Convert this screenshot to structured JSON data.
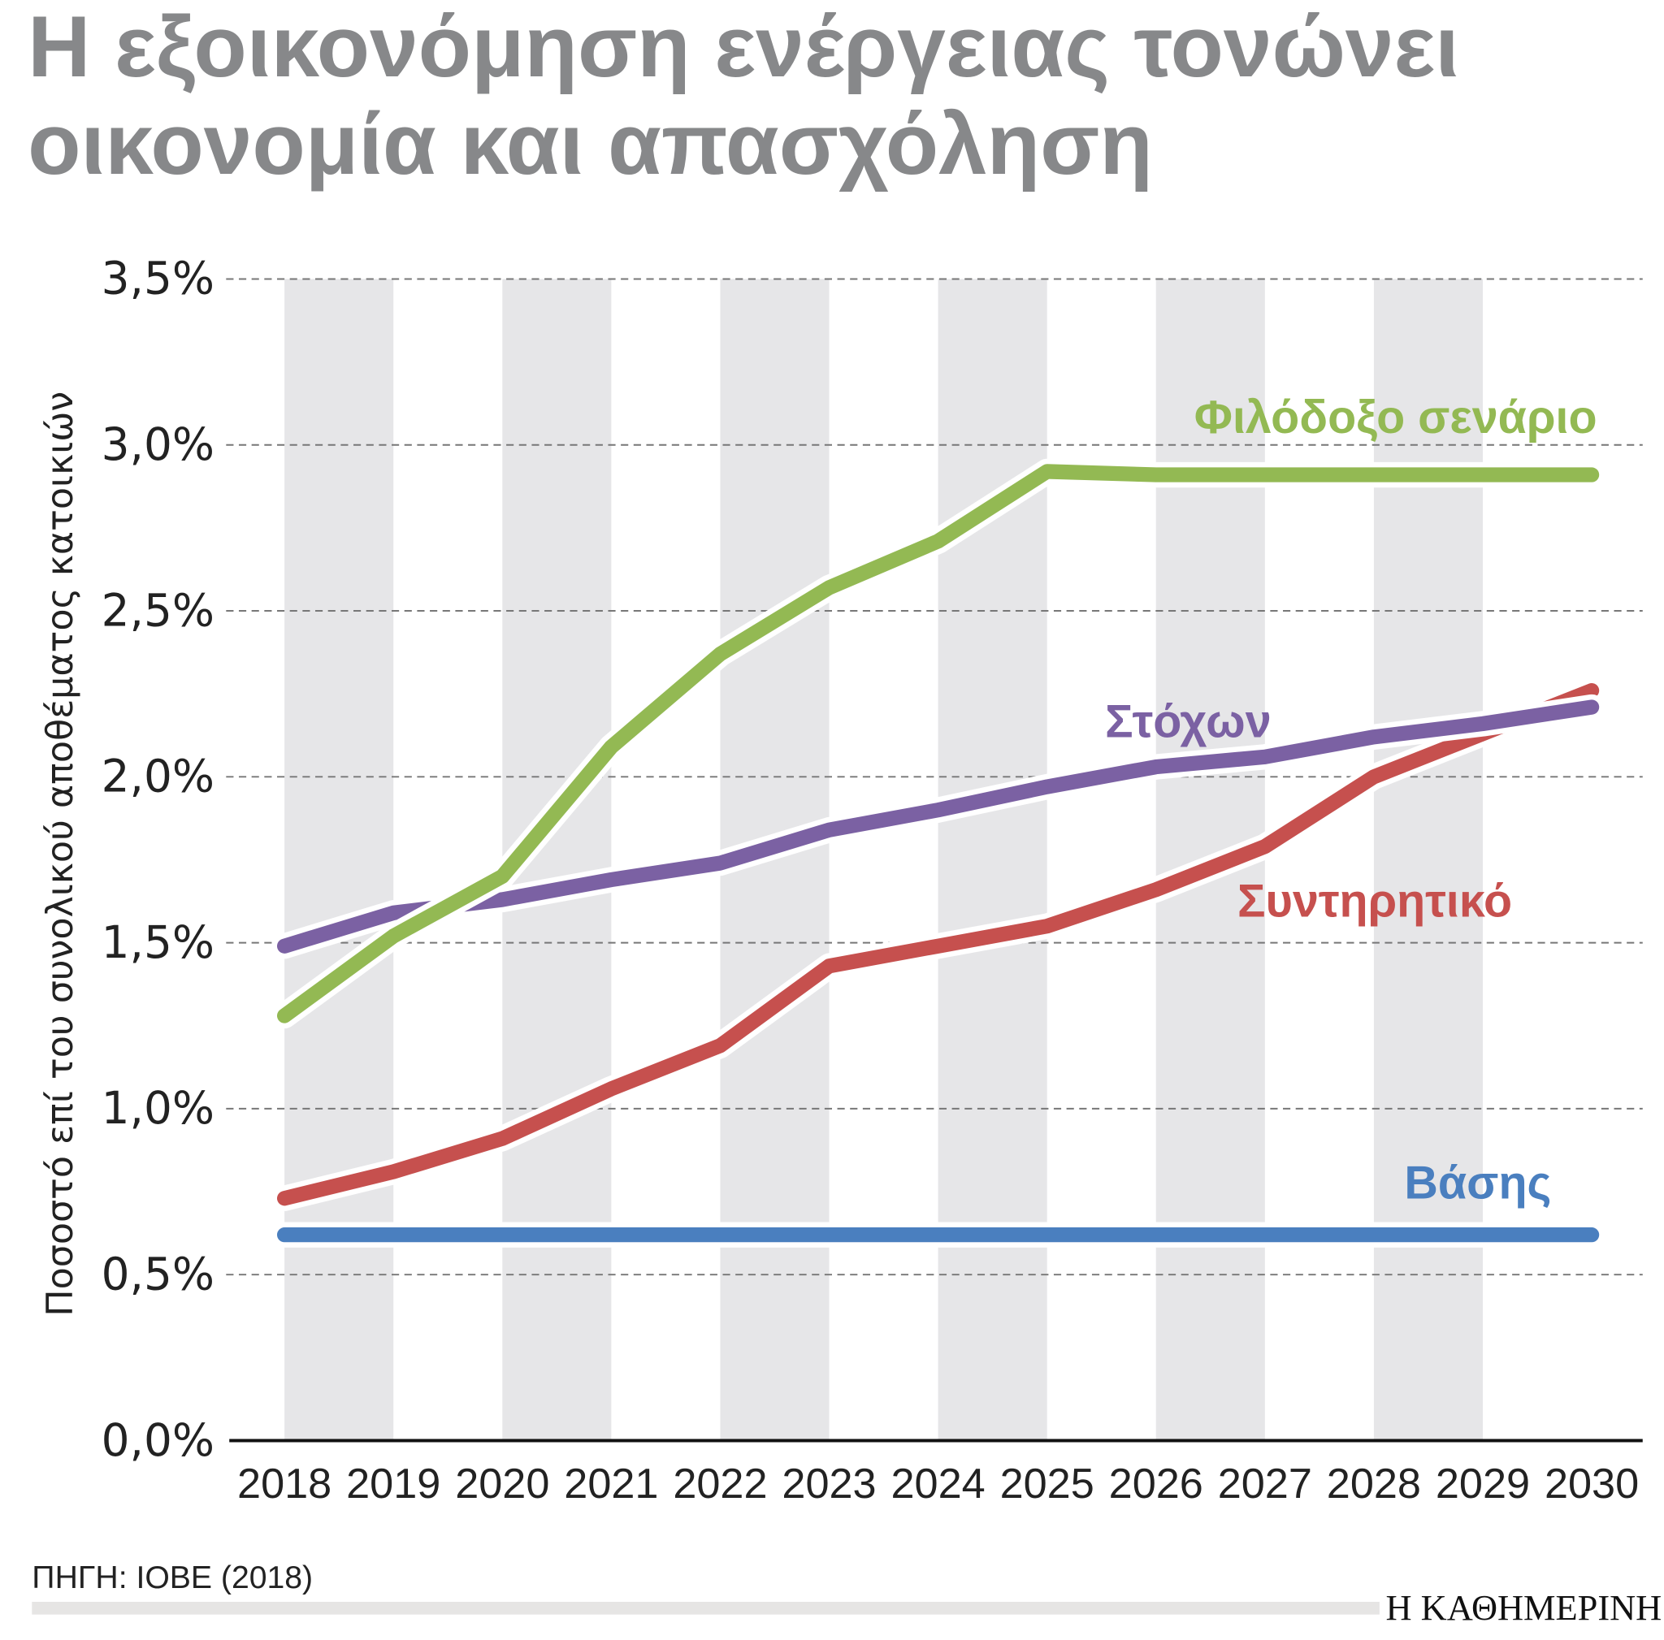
{
  "title_lines": [
    "Η εξοικονόμηση ενέργειας τονώνει",
    "οικονομία και απασχόληση"
  ],
  "source": "ΠΗΓΗ: ΙΟΒΕ (2018)",
  "logo": "Η ΚΑΘΗΜΕΡΙΝΗ",
  "chart_data": {
    "type": "line",
    "title": "Η εξοικονόμηση ενέργειας τονώνει οικονομία και απασχόληση",
    "xlabel": "",
    "ylabel": "Ποσοστό επί του συνολικού αποθέματος κατοικιών",
    "ylim": [
      0,
      3.5
    ],
    "yticks": [
      "0,0%",
      "0,5%",
      "1,0%",
      "1,5%",
      "2,0%",
      "2,5%",
      "3,0%",
      "3,5%"
    ],
    "grid": "horizontal dashed",
    "x": [
      "2018",
      "2019",
      "2020",
      "2021",
      "2022",
      "2023",
      "2024",
      "2025",
      "2026",
      "2027",
      "2028",
      "2029",
      "2030"
    ],
    "series": [
      {
        "name": "Φιλόδοξο σενάριο",
        "color": "#93b953",
        "values": [
          1.28,
          1.52,
          1.7,
          2.09,
          2.37,
          2.57,
          2.71,
          2.92,
          2.91,
          2.91,
          2.91,
          2.91,
          2.91
        ]
      },
      {
        "name": "Στόχων",
        "color": "#7b61a3",
        "values": [
          1.49,
          1.59,
          1.63,
          1.69,
          1.74,
          1.84,
          1.9,
          1.97,
          2.03,
          2.06,
          2.12,
          2.16,
          2.21
        ]
      },
      {
        "name": "Συντηρητικό",
        "color": "#c6504e",
        "values": [
          0.73,
          0.81,
          0.91,
          1.06,
          1.19,
          1.43,
          1.49,
          1.55,
          1.66,
          1.79,
          2.0,
          2.13,
          2.26
        ]
      },
      {
        "name": "Βάσης",
        "color": "#4a7fbf",
        "values": [
          0.62,
          0.62,
          0.62,
          0.62,
          0.62,
          0.62,
          0.62,
          0.62,
          0.62,
          0.62,
          0.62,
          0.62,
          0.62
        ]
      }
    ]
  }
}
